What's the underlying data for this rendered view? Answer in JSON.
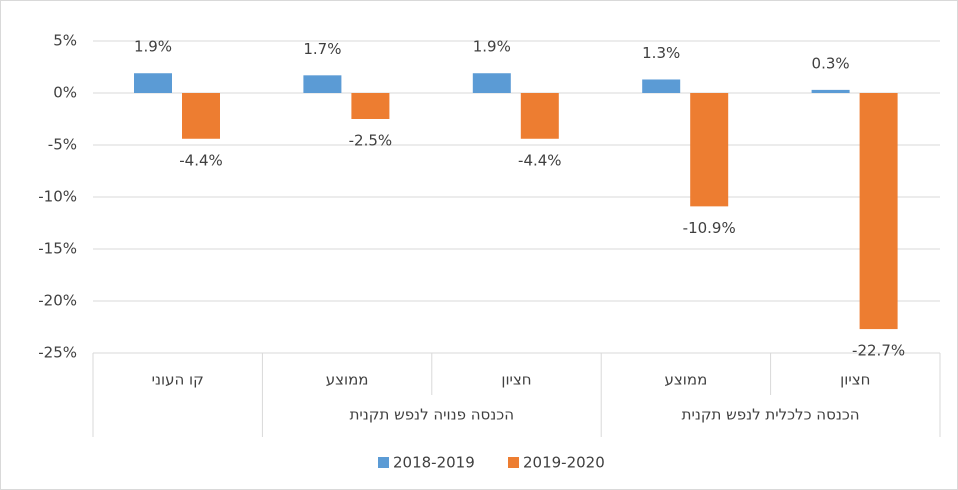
{
  "chart_data": {
    "type": "bar",
    "categories": [
      "קו העוני",
      "ממוצע",
      "חציון",
      "ממוצע",
      "חציון"
    ],
    "category_groups": [
      null,
      "הכנסה פנויה לנפש תקנית",
      "הכנסה פנויה לנפש תקנית",
      "הכנסה כלכלית לנפש תקנית",
      "הכנסה כלכלית לנפש תקנית"
    ],
    "series": [
      {
        "name": "2018-2019",
        "color": "#5b9bd5",
        "values": [
          1.9,
          1.7,
          1.9,
          1.3,
          0.3
        ],
        "value_labels": [
          "1.9%",
          "1.7%",
          "1.9%",
          "1.3%",
          "0.3%"
        ]
      },
      {
        "name": "2019-2020",
        "color": "#ed7d31",
        "values": [
          -4.4,
          -2.5,
          -4.4,
          -10.9,
          -22.7
        ],
        "value_labels": [
          "-4.4%",
          "-2.5%",
          "-4.4%",
          "-10.9%",
          "-22.7%"
        ]
      }
    ],
    "ylim": [
      -25,
      5
    ],
    "yticks": [
      {
        "value": 5,
        "label": "5%"
      },
      {
        "value": 0,
        "label": "0%"
      },
      {
        "value": -5,
        "label": "-5%"
      },
      {
        "value": -10,
        "label": "-10%"
      },
      {
        "value": -15,
        "label": "-15%"
      },
      {
        "value": -20,
        "label": "-20%"
      },
      {
        "value": -25,
        "label": "-25%"
      }
    ],
    "grid": true,
    "legend": "bottom"
  }
}
